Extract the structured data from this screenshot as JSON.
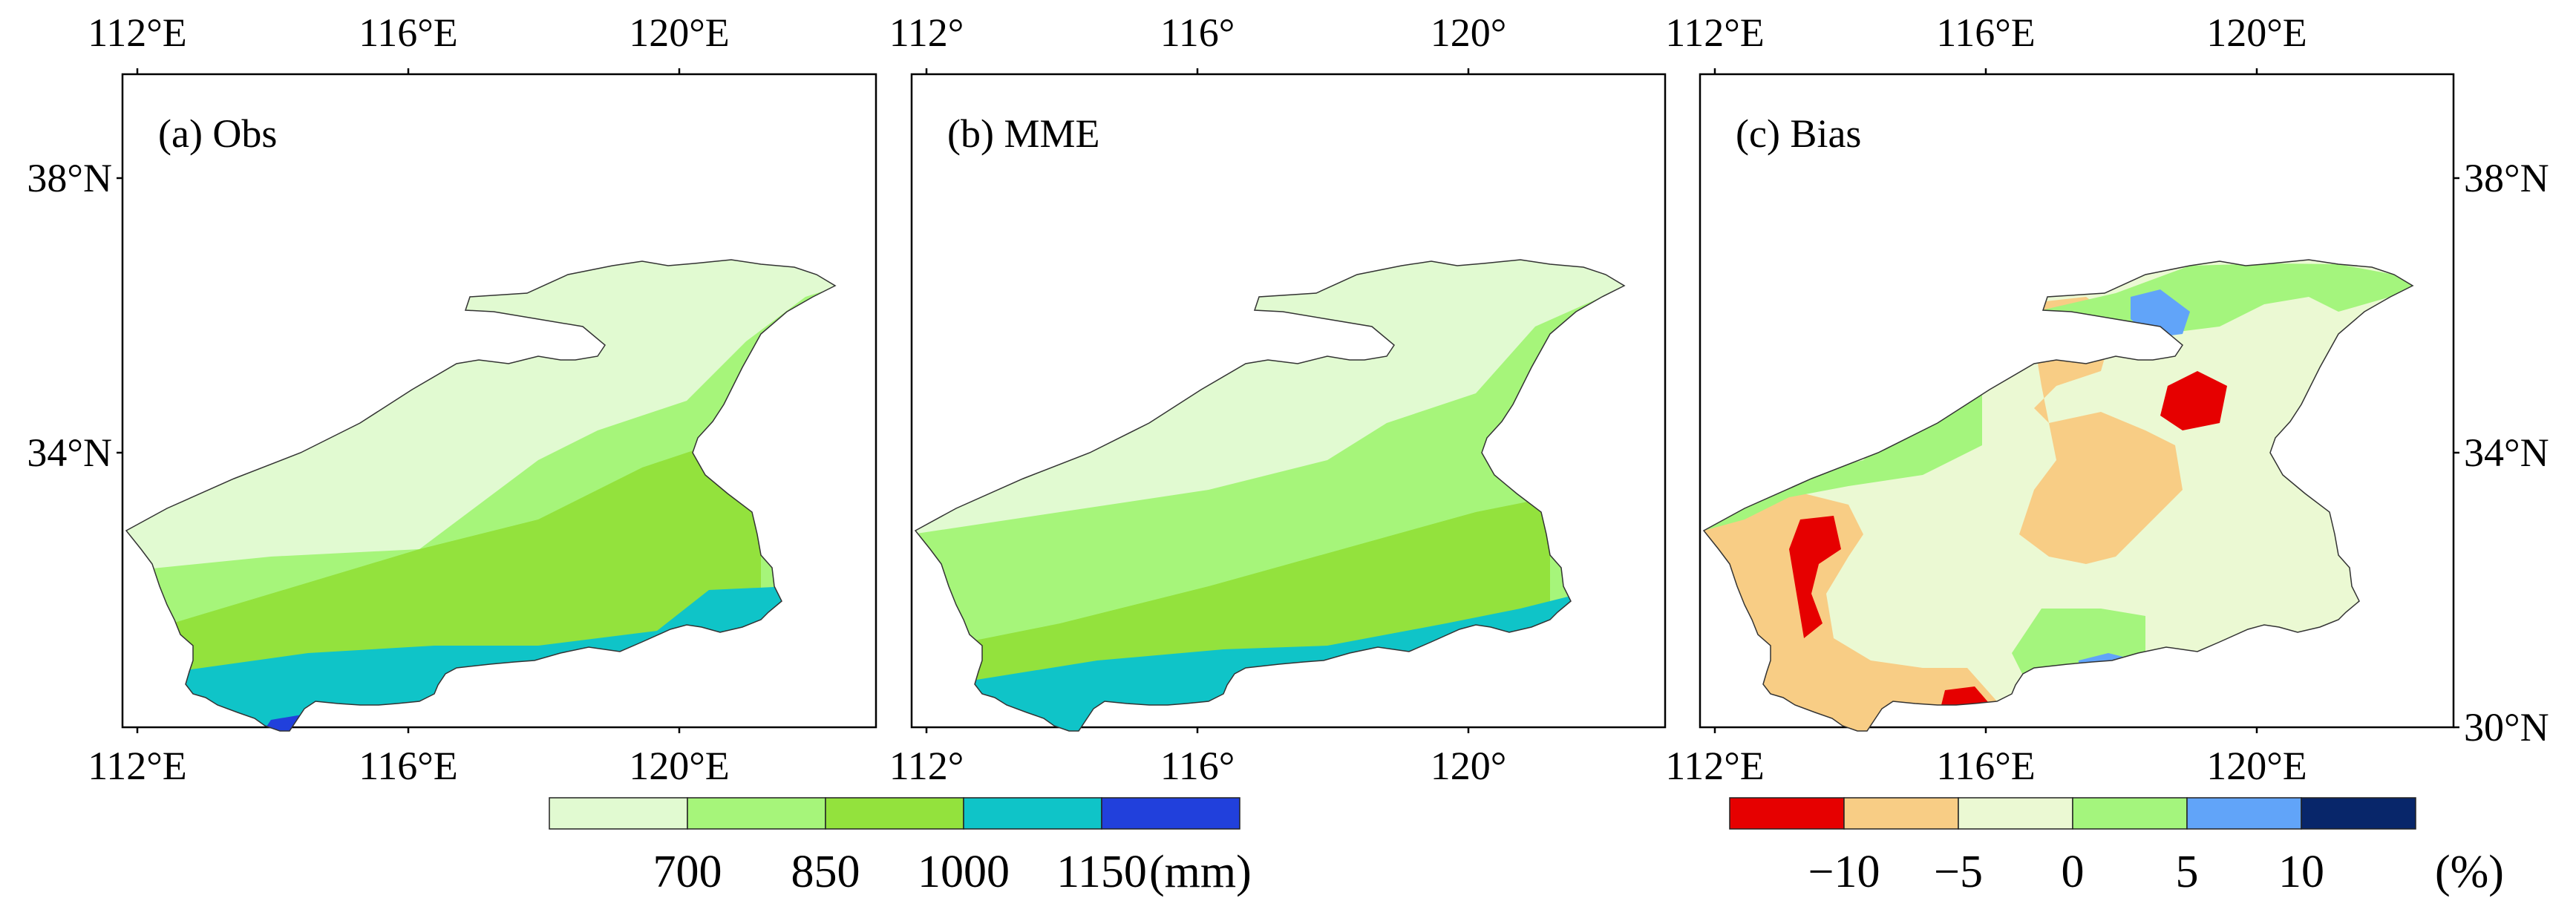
{
  "panels": [
    {
      "id": "a",
      "title": "(a) Obs",
      "top_ticks": [
        "112°E",
        "116°E",
        "120°E"
      ],
      "bottom_ticks": [
        "112°E",
        "116°E",
        "120°E"
      ],
      "left_ticks": [
        "38°N",
        "34°N"
      ],
      "right_ticks": [],
      "field": "obs"
    },
    {
      "id": "b",
      "title": "(b) MME",
      "top_ticks": [
        "112°",
        "116°",
        "120°"
      ],
      "bottom_ticks": [
        "112°",
        "116°",
        "120°"
      ],
      "left_ticks": [],
      "right_ticks": [],
      "field": "mme"
    },
    {
      "id": "c",
      "title": "(c) Bias",
      "top_ticks": [
        "112°E",
        "116°E",
        "120°E"
      ],
      "bottom_ticks": [
        "112°E",
        "116°E",
        "120°E"
      ],
      "left_ticks": [],
      "right_ticks": [
        "38°N",
        "34°N",
        "30°N"
      ],
      "field": "bias"
    }
  ],
  "precip_legend": {
    "colors": [
      "#e1fad1",
      "#a6f57a",
      "#93e23d",
      "#0fc4c8",
      "#2140dc"
    ],
    "labels": [
      "700",
      "850",
      "1000",
      "1150"
    ],
    "unit": "(mm)"
  },
  "bias_legend": {
    "colors": [
      "#e60000",
      "#f8cd85",
      "#ebf9d3",
      "#a4f57d",
      "#61a4f9",
      "#08266a"
    ],
    "labels": [
      "−10",
      "−5",
      "0",
      "5",
      "10"
    ],
    "unit": "(%)"
  }
}
